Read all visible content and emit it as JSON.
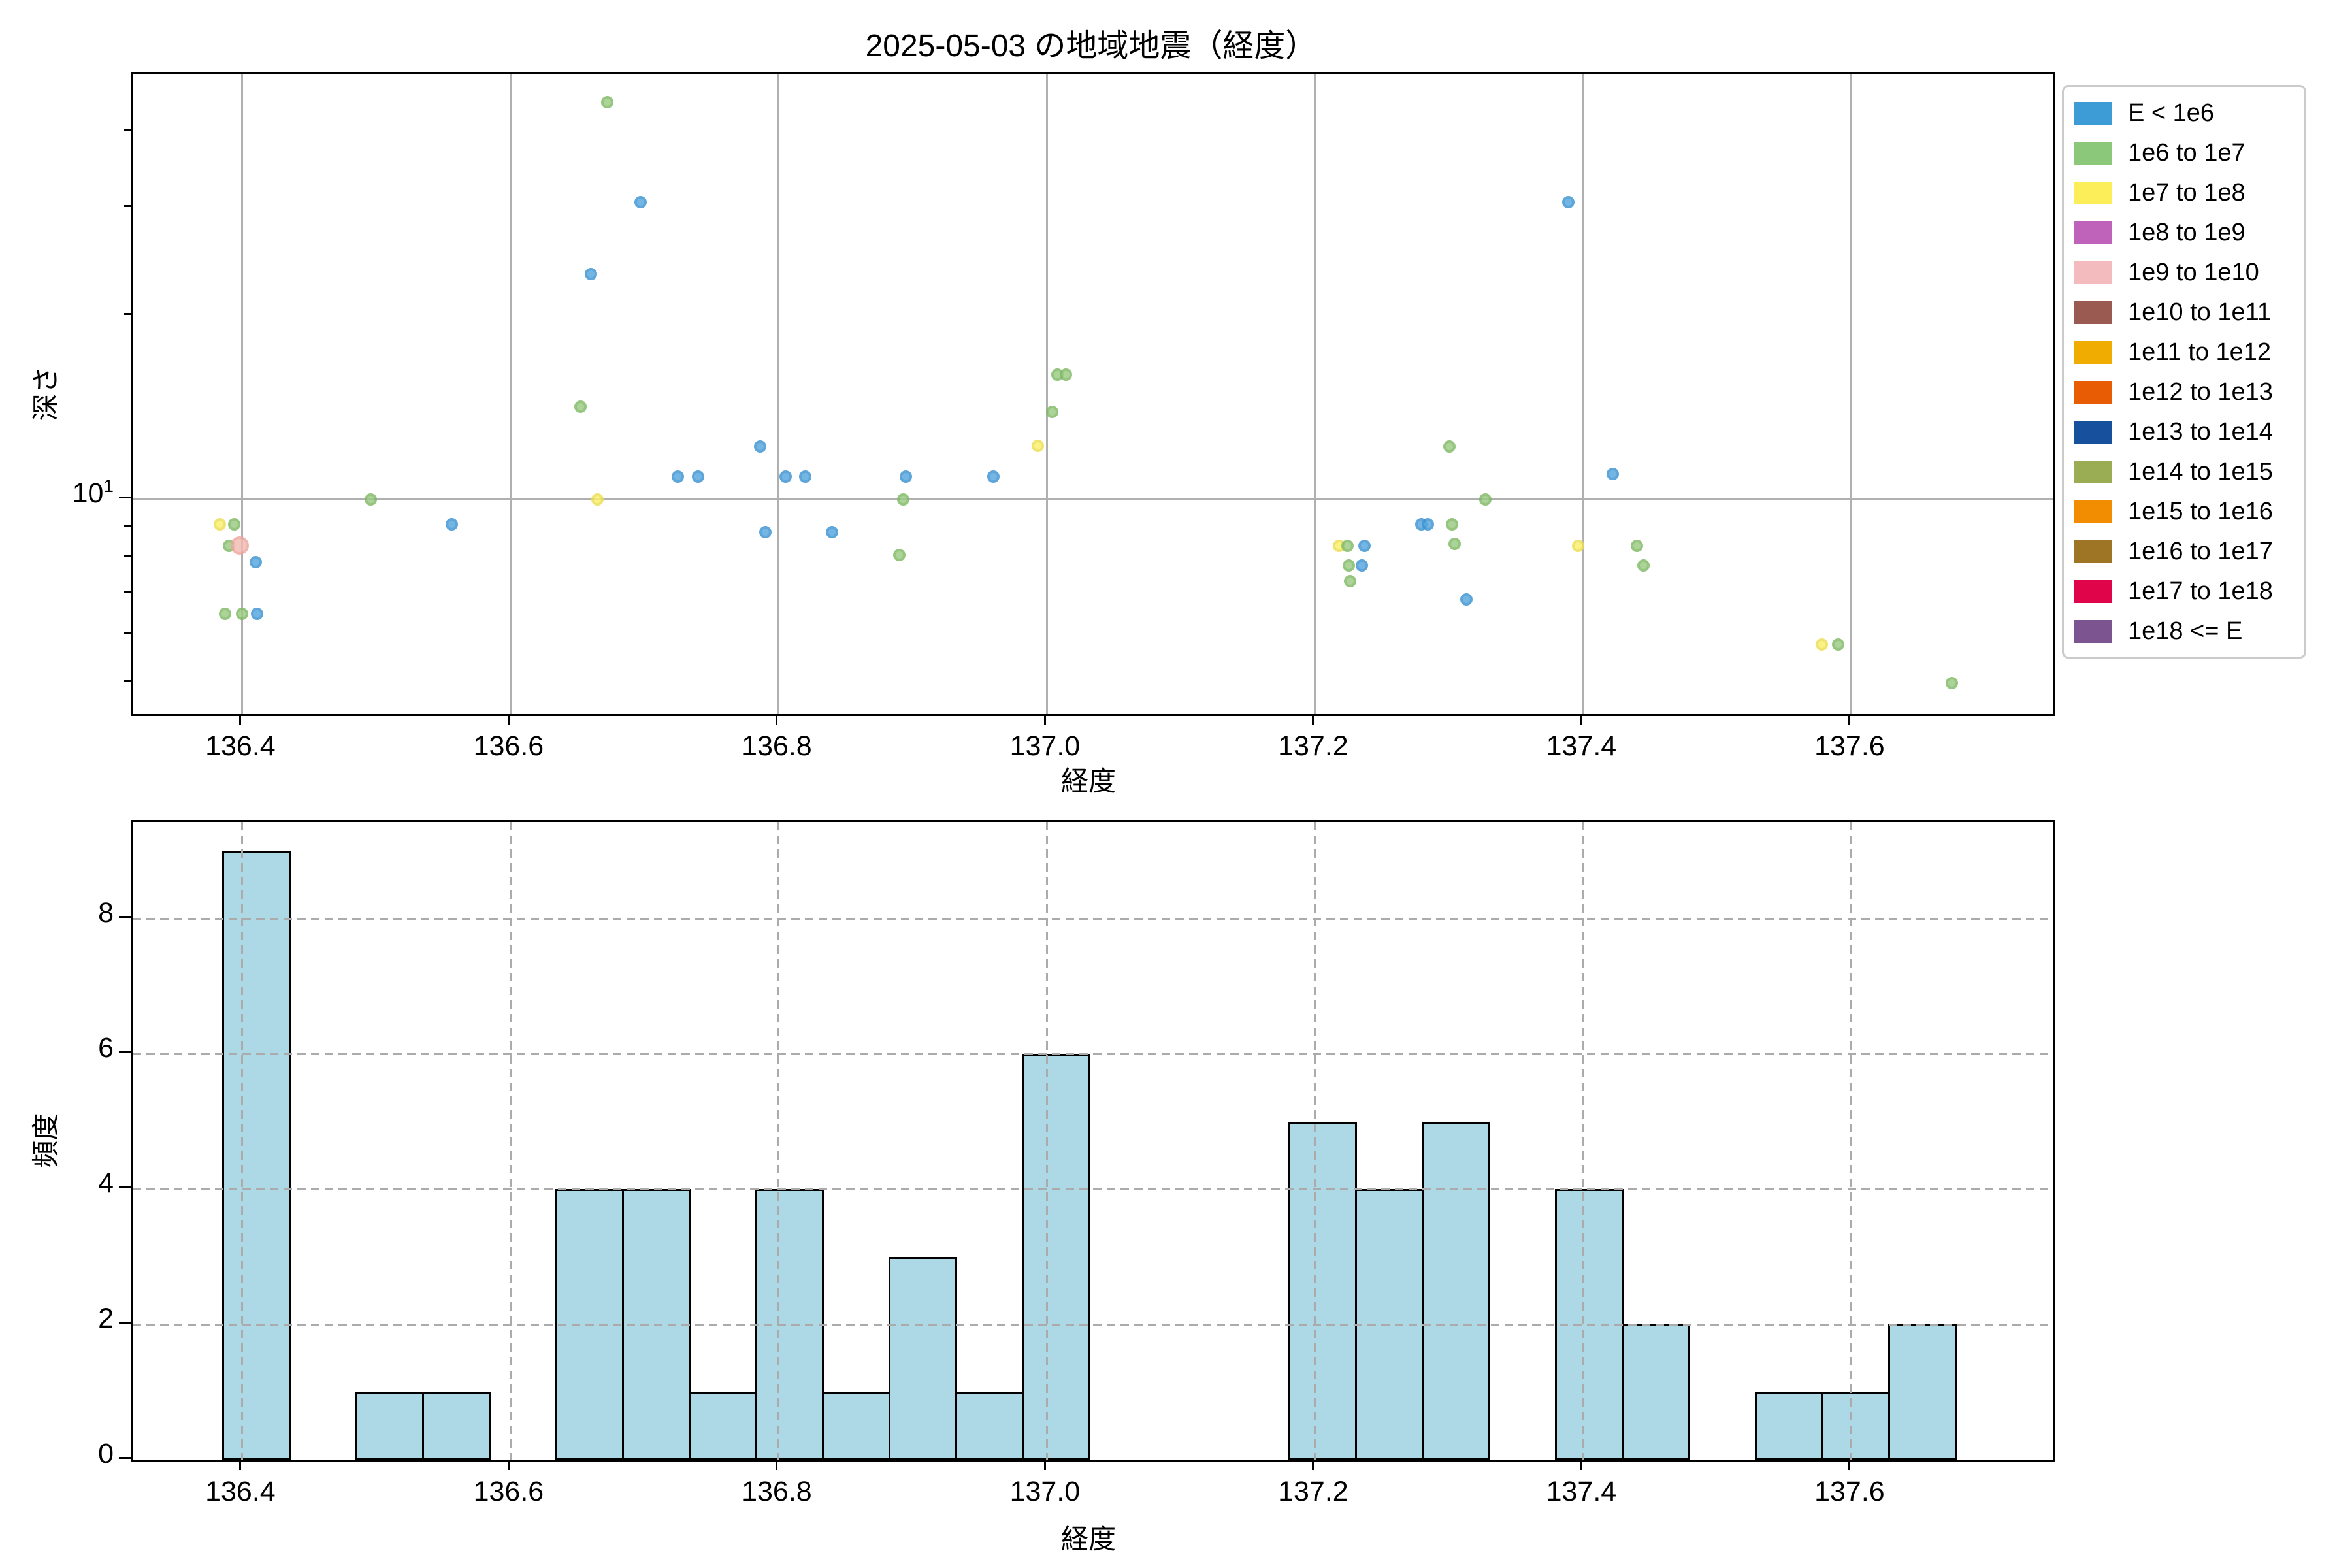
{
  "title": "2025-05-03 の地域地震（経度）",
  "legend": {
    "items": [
      {
        "label": "E < 1e6",
        "color": "#3D9BD5"
      },
      {
        "label": "1e6 to 1e7",
        "color": "#8CC87A"
      },
      {
        "label": "1e7 to 1e8",
        "color": "#FBEE58"
      },
      {
        "label": "1e8 to 1e9",
        "color": "#BF62B9"
      },
      {
        "label": "1e9 to 1e10",
        "color": "#F4BBBE"
      },
      {
        "label": "1e10 to 1e11",
        "color": "#9A5A52"
      },
      {
        "label": "1e11 to 1e12",
        "color": "#F0AC00"
      },
      {
        "label": "1e12 to 1e13",
        "color": "#E85D04"
      },
      {
        "label": "1e13 to 1e14",
        "color": "#17509D"
      },
      {
        "label": "1e14 to 1e15",
        "color": "#9AAD55"
      },
      {
        "label": "1e15 to 1e16",
        "color": "#F28C00"
      },
      {
        "label": "1e16 to 1e17",
        "color": "#9D7524"
      },
      {
        "label": "1e17 to 1e18",
        "color": "#E0054A"
      },
      {
        "label": "1e18 <= E",
        "color": "#7C5590"
      }
    ]
  },
  "chart_data": [
    {
      "type": "scatter",
      "xlabel": "経度",
      "ylabel": "深さ",
      "xlim": [
        136.3182,
        137.7506
      ],
      "ylim_log": [
        4.45,
        49.8
      ],
      "x_ticks": [
        136.4,
        136.6,
        136.8,
        137.0,
        137.2,
        137.4,
        137.6
      ],
      "y_major_tick": 10,
      "y_major_tick_label": {
        "base": "10",
        "exp": "1"
      },
      "y_minor_ticks": [
        5,
        6,
        7,
        8,
        9,
        20,
        30,
        40
      ],
      "grid_color": "#b0b0b0",
      "classes": [
        {
          "name": "E < 1e6",
          "fill": "#56A7DE",
          "edge": "#3B93D2"
        },
        {
          "name": "1e6 to 1e7",
          "fill": "#9BCB83",
          "edge": "#7FB965"
        },
        {
          "name": "1e7 to 1e8",
          "fill": "#FAF06A",
          "edge": "#EDDF52"
        },
        {
          "name": "1e8 to 1e9",
          "fill": "#C573BF",
          "edge": "#B55CAF"
        },
        {
          "name": "1e9 to 1e10",
          "fill": "#F3B9B2",
          "edge": "#ECA69D"
        }
      ],
      "default_radius": 9.5,
      "points": [
        [
          136.383,
          9.1,
          2
        ],
        [
          136.394,
          9.1,
          1
        ],
        [
          136.39,
          8.4,
          1
        ],
        [
          136.398,
          8.4,
          4,
          14
        ],
        [
          136.41,
          7.9,
          0
        ],
        [
          136.387,
          6.5,
          1
        ],
        [
          136.4,
          6.5,
          1
        ],
        [
          136.411,
          6.5,
          0
        ],
        [
          136.496,
          10.0,
          1
        ],
        [
          136.556,
          9.1,
          0
        ],
        [
          136.672,
          44.7,
          1
        ],
        [
          136.697,
          30.7,
          0
        ],
        [
          136.66,
          23.4,
          0
        ],
        [
          136.652,
          14.2,
          1
        ],
        [
          136.665,
          10.0,
          2
        ],
        [
          136.725,
          10.9,
          0
        ],
        [
          136.74,
          10.9,
          0
        ],
        [
          136.786,
          12.2,
          0
        ],
        [
          136.805,
          10.9,
          0
        ],
        [
          136.82,
          10.9,
          0
        ],
        [
          136.79,
          8.85,
          0
        ],
        [
          136.84,
          8.85,
          0
        ],
        [
          136.893,
          10.0,
          1
        ],
        [
          136.89,
          8.1,
          1
        ],
        [
          136.895,
          10.9,
          0
        ],
        [
          136.96,
          10.9,
          0
        ],
        [
          136.993,
          12.25,
          2
        ],
        [
          137.004,
          13.9,
          1
        ],
        [
          137.008,
          16.0,
          1
        ],
        [
          137.014,
          16.0,
          1
        ],
        [
          137.3,
          12.2,
          1
        ],
        [
          137.389,
          30.7,
          0
        ],
        [
          137.422,
          11.0,
          0
        ],
        [
          137.327,
          10.0,
          1
        ],
        [
          137.279,
          9.1,
          0
        ],
        [
          137.284,
          9.1,
          0
        ],
        [
          137.302,
          9.1,
          1
        ],
        [
          137.218,
          8.4,
          2
        ],
        [
          137.224,
          8.4,
          1
        ],
        [
          137.237,
          8.4,
          0
        ],
        [
          137.225,
          7.8,
          1
        ],
        [
          137.235,
          7.8,
          0
        ],
        [
          137.226,
          7.35,
          1
        ],
        [
          137.304,
          8.45,
          1
        ],
        [
          137.313,
          6.85,
          0
        ],
        [
          137.396,
          8.4,
          2
        ],
        [
          137.44,
          8.4,
          1
        ],
        [
          137.445,
          7.8,
          1
        ],
        [
          137.578,
          5.78,
          2
        ],
        [
          137.59,
          5.78,
          1
        ],
        [
          137.675,
          5.0,
          1
        ]
      ]
    },
    {
      "type": "histogram",
      "xlabel": "経度",
      "ylabel": "頻度",
      "xlim": [
        136.3182,
        137.7506
      ],
      "ylim": [
        0,
        9.43
      ],
      "x_ticks": [
        136.4,
        136.6,
        136.8,
        137.0,
        137.2,
        137.4,
        137.6
      ],
      "y_ticks": [
        0,
        2,
        4,
        6,
        8
      ],
      "bar_fill": "#ADD8E6",
      "bar_edge": "#000000",
      "bin_start": 136.3851,
      "bin_width": 0.04969,
      "counts": [
        9,
        0,
        1,
        1,
        0,
        4,
        4,
        1,
        4,
        1,
        3,
        1,
        6,
        0,
        0,
        0,
        5,
        4,
        5,
        0,
        4,
        2,
        0,
        1,
        1,
        2
      ]
    }
  ]
}
